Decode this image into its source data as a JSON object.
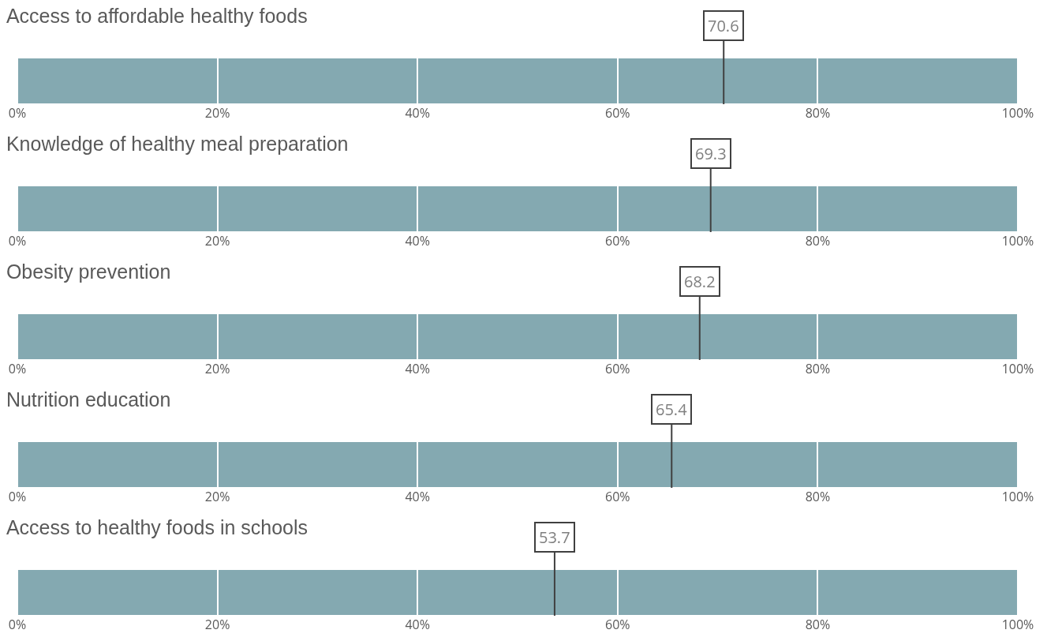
{
  "chart_data": [
    {
      "type": "bar",
      "orientation": "horizontal",
      "stacked": true,
      "title": "Access to affordable healthy foods",
      "categories": [
        null
      ],
      "series": [
        {
          "color": "#84a9b1",
          "values": [
            20
          ]
        },
        {
          "color": "#84a9b1",
          "values": [
            20
          ]
        },
        {
          "color": "#84a9b1",
          "values": [
            20
          ]
        },
        {
          "color": "#84a9b1",
          "values": [
            20
          ]
        },
        {
          "color": "#84a9b1",
          "values": [
            20
          ]
        }
      ],
      "xlim": [
        0,
        100
      ],
      "xticks": [
        {
          "value": 0,
          "label": "0%"
        },
        {
          "value": 20,
          "label": "20%"
        },
        {
          "value": 40,
          "label": "40%"
        },
        {
          "value": 60,
          "label": "60%"
        },
        {
          "value": 80,
          "label": "80%"
        },
        {
          "value": 100,
          "label": "100%"
        }
      ],
      "ref_lines": [
        {
          "axis": "x",
          "value": 70.6,
          "label": "70.6",
          "color": "#404040"
        }
      ],
      "grid": false
    },
    {
      "type": "bar",
      "orientation": "horizontal",
      "stacked": true,
      "title": "Knowledge of healthy meal preparation",
      "categories": [
        null
      ],
      "series": [
        {
          "color": "#84a9b1",
          "values": [
            20
          ]
        },
        {
          "color": "#84a9b1",
          "values": [
            20
          ]
        },
        {
          "color": "#84a9b1",
          "values": [
            20
          ]
        },
        {
          "color": "#84a9b1",
          "values": [
            20
          ]
        },
        {
          "color": "#84a9b1",
          "values": [
            20
          ]
        }
      ],
      "xlim": [
        0,
        100
      ],
      "xticks": [
        {
          "value": 0,
          "label": "0%"
        },
        {
          "value": 20,
          "label": "20%"
        },
        {
          "value": 40,
          "label": "40%"
        },
        {
          "value": 60,
          "label": "60%"
        },
        {
          "value": 80,
          "label": "80%"
        },
        {
          "value": 100,
          "label": "100%"
        }
      ],
      "ref_lines": [
        {
          "axis": "x",
          "value": 69.3,
          "label": "69.3",
          "color": "#404040"
        }
      ],
      "grid": false
    },
    {
      "type": "bar",
      "orientation": "horizontal",
      "stacked": true,
      "title": "Obesity prevention",
      "categories": [
        null
      ],
      "series": [
        {
          "color": "#84a9b1",
          "values": [
            20
          ]
        },
        {
          "color": "#84a9b1",
          "values": [
            20
          ]
        },
        {
          "color": "#84a9b1",
          "values": [
            20
          ]
        },
        {
          "color": "#84a9b1",
          "values": [
            20
          ]
        },
        {
          "color": "#84a9b1",
          "values": [
            20
          ]
        }
      ],
      "xlim": [
        0,
        100
      ],
      "xticks": [
        {
          "value": 0,
          "label": "0%"
        },
        {
          "value": 20,
          "label": "20%"
        },
        {
          "value": 40,
          "label": "40%"
        },
        {
          "value": 60,
          "label": "60%"
        },
        {
          "value": 80,
          "label": "80%"
        },
        {
          "value": 100,
          "label": "100%"
        }
      ],
      "ref_lines": [
        {
          "axis": "x",
          "value": 68.2,
          "label": "68.2",
          "color": "#404040"
        }
      ],
      "grid": false
    },
    {
      "type": "bar",
      "orientation": "horizontal",
      "stacked": true,
      "title": "Nutrition education",
      "categories": [
        null
      ],
      "series": [
        {
          "color": "#84a9b1",
          "values": [
            20
          ]
        },
        {
          "color": "#84a9b1",
          "values": [
            20
          ]
        },
        {
          "color": "#84a9b1",
          "values": [
            20
          ]
        },
        {
          "color": "#84a9b1",
          "values": [
            20
          ]
        },
        {
          "color": "#84a9b1",
          "values": [
            20
          ]
        }
      ],
      "xlim": [
        0,
        100
      ],
      "xticks": [
        {
          "value": 0,
          "label": "0%"
        },
        {
          "value": 20,
          "label": "20%"
        },
        {
          "value": 40,
          "label": "40%"
        },
        {
          "value": 60,
          "label": "60%"
        },
        {
          "value": 80,
          "label": "80%"
        },
        {
          "value": 100,
          "label": "100%"
        }
      ],
      "ref_lines": [
        {
          "axis": "x",
          "value": 65.4,
          "label": "65.4",
          "color": "#404040"
        }
      ],
      "grid": false
    },
    {
      "type": "bar",
      "orientation": "horizontal",
      "stacked": true,
      "title": "Access to healthy foods in schools",
      "categories": [
        null
      ],
      "series": [
        {
          "color": "#84a9b1",
          "values": [
            20
          ]
        },
        {
          "color": "#84a9b1",
          "values": [
            20
          ]
        },
        {
          "color": "#84a9b1",
          "values": [
            20
          ]
        },
        {
          "color": "#84a9b1",
          "values": [
            20
          ]
        },
        {
          "color": "#84a9b1",
          "values": [
            20
          ]
        }
      ],
      "xlim": [
        0,
        100
      ],
      "xticks": [
        {
          "value": 0,
          "label": "0%"
        },
        {
          "value": 20,
          "label": "20%"
        },
        {
          "value": 40,
          "label": "40%"
        },
        {
          "value": 60,
          "label": "60%"
        },
        {
          "value": 80,
          "label": "80%"
        },
        {
          "value": 100,
          "label": "100%"
        }
      ],
      "ref_lines": [
        {
          "axis": "x",
          "value": 53.7,
          "label": "53.7",
          "color": "#404040"
        }
      ],
      "grid": false
    }
  ]
}
